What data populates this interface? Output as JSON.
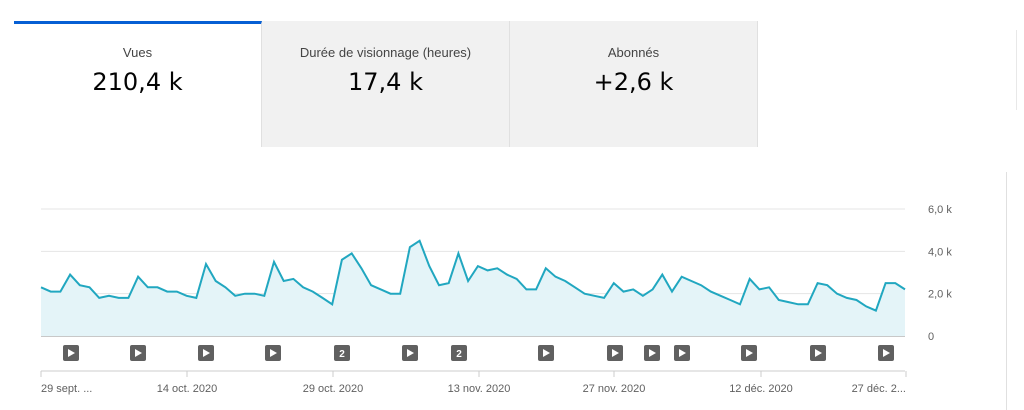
{
  "tabs": [
    {
      "label": "Vues",
      "value": "210,4 k",
      "active": true
    },
    {
      "label": "Durée de visionnage (heures)",
      "value": "17,4 k",
      "active": false
    },
    {
      "label": "Abonnés",
      "value": "+2,6 k",
      "active": false
    }
  ],
  "colors": {
    "line": "#21a7c0",
    "area": "#e4f4f8",
    "marker": "#606060",
    "accent": "#065fd4"
  },
  "chart_data": {
    "type": "area",
    "y_ticks": [
      "6,0 k",
      "4,0 k",
      "2,0 k",
      "0"
    ],
    "ylim": [
      0,
      6000
    ],
    "x_ticks": [
      "29 sept. ...",
      "14 oct. 2020",
      "29 oct. 2020",
      "13 nov. 2020",
      "27 nov. 2020",
      "12 déc. 2020",
      "27 déc. 2..."
    ],
    "series": [
      {
        "values": [
          2300,
          2100,
          2100,
          2900,
          2400,
          2300,
          1800,
          1900,
          1800,
          1800,
          2800,
          2300,
          2300,
          2100,
          2100,
          1900,
          1800,
          3400,
          2600,
          2300,
          1900,
          2000,
          2000,
          1900,
          3500,
          2600,
          2700,
          2300,
          2100,
          1800,
          1500,
          3600,
          3900,
          3200,
          2400,
          2200,
          2000,
          2000,
          4200,
          4500,
          3300,
          2400,
          2500,
          3900,
          2600,
          3300,
          3100,
          3200,
          2900,
          2700,
          2200,
          2200,
          3200,
          2800,
          2600,
          2300,
          2000,
          1900,
          1800,
          2500,
          2100,
          2200,
          1900,
          2200,
          2900,
          2100,
          2800,
          2600,
          2400,
          2100,
          1900,
          1700,
          1500,
          2700,
          2200,
          2300,
          1700,
          1600,
          1500,
          1500,
          2500,
          2400,
          2000,
          1800,
          1700,
          1400,
          1200,
          2500,
          2500,
          2200
        ]
      }
    ],
    "markers": [
      "play",
      "play",
      "play",
      "play",
      "2",
      "play",
      "2",
      "play",
      "play",
      "play",
      "play",
      "play",
      "play",
      "play"
    ]
  }
}
